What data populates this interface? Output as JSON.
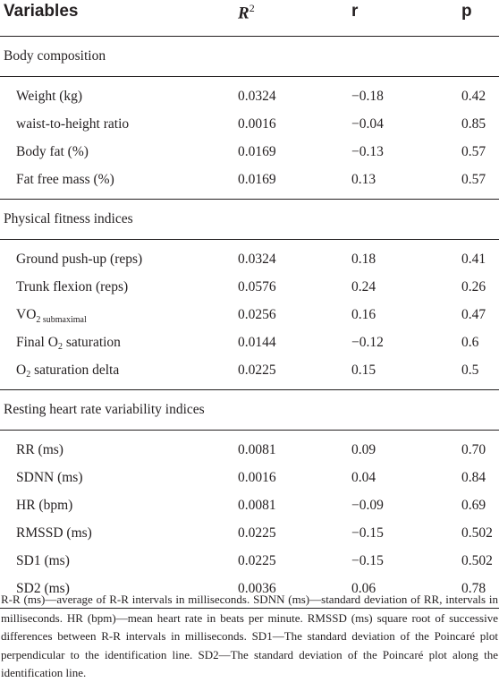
{
  "header": {
    "variables": "Variables",
    "r2": "R",
    "r2_sup": "2",
    "r": "r",
    "p": "p"
  },
  "sections": [
    {
      "title": "Body composition",
      "rows": [
        {
          "variable": "Weight (kg)",
          "r2": "0.0324",
          "r": "−0.18",
          "p": "0.42"
        },
        {
          "variable": "waist-to-height ratio",
          "r2": "0.0016",
          "r": "−0.04",
          "p": "0.85"
        },
        {
          "variable": "Body fat (%)",
          "r2": "0.0169",
          "r": "−0.13",
          "p": "0.57"
        },
        {
          "variable": "Fat free mass (%)",
          "r2": "0.0169",
          "r": "0.13",
          "p": "0.57"
        }
      ]
    },
    {
      "title": "Physical fitness indices",
      "rows": [
        {
          "variable": "Ground push-up (reps)",
          "r2": "0.0324",
          "r": "0.18",
          "p": "0.41"
        },
        {
          "variable": "Trunk flexion (reps)",
          "r2": "0.0576",
          "r": "0.24",
          "p": "0.26"
        },
        {
          "variable_main": "VO",
          "variable_sub": "2 submaximal",
          "r2": "0.0256",
          "r": "0.16",
          "p": "0.47"
        },
        {
          "variable_pre": "Final O",
          "variable_sub": "2",
          "variable_post": " saturation",
          "r2": "0.0144",
          "r": "−0.12",
          "p": "0.6"
        },
        {
          "variable_pre": "O",
          "variable_sub": "2",
          "variable_post": " saturation delta",
          "r2": "0.0225",
          "r": "0.15",
          "p": "0.5"
        }
      ]
    },
    {
      "title": "Resting heart rate variability indices",
      "rows": [
        {
          "variable": "RR (ms)",
          "r2": "0.0081",
          "r": "0.09",
          "p": "0.70"
        },
        {
          "variable": "SDNN (ms)",
          "r2": "0.0016",
          "r": "0.04",
          "p": "0.84"
        },
        {
          "variable": "HR (bpm)",
          "r2": "0.0081",
          "r": "−0.09",
          "p": "0.69"
        },
        {
          "variable": "RMSSD (ms)",
          "r2": "0.0225",
          "r": "−0.15",
          "p": "0.502"
        },
        {
          "variable": "SD1 (ms)",
          "r2": "0.0225",
          "r": "−0.15",
          "p": "0.502"
        },
        {
          "variable": "SD2 (ms)",
          "r2": "0.0036",
          "r": "0.06",
          "p": "0.78"
        }
      ]
    }
  ],
  "footnote": "R-R (ms)—average of R-R intervals in milliseconds. SDNN (ms)—standard deviation of RR, intervals in milliseconds. HR (bpm)—mean heart rate in beats per minute. RMSSD (ms) square root of successive differences between R-R intervals in milliseconds. SD1—The standard deviation of the Poincaré plot perpendicular to the identification line. SD2—The standard deviation of the Poincaré plot along the identification line."
}
